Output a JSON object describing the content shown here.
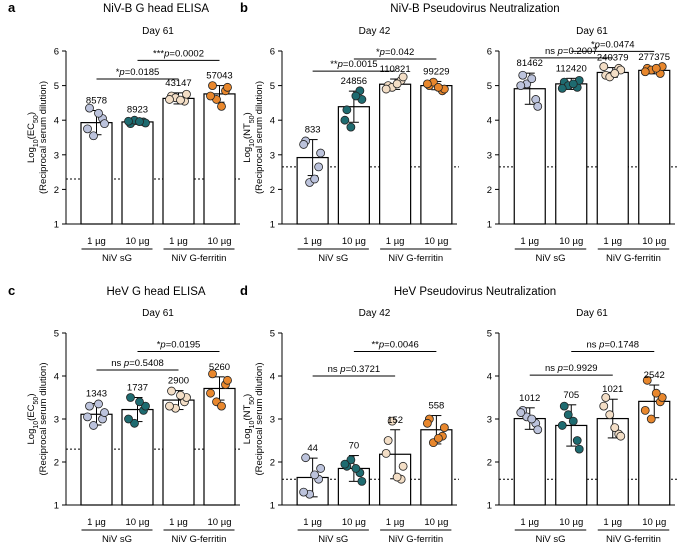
{
  "colors": {
    "dot_1ug_sG": "#bcc3dc",
    "dot_10ug_sG": "#1e6b70",
    "dot_1ug_ferritin": "#f3dec6",
    "dot_10ug_ferritin": "#e8872d",
    "axis": "#000000",
    "bar_fill": "#ffffff"
  },
  "common": {
    "categories": [
      "1 µg",
      "10 µg",
      "1 µg",
      "10 µg"
    ],
    "group_labels": [
      "NiV sG",
      "NiV G-ferritin"
    ]
  },
  "chart_data": [
    {
      "id": "a-day61",
      "type": "bar",
      "panel_letter": "a",
      "panel_title": "NiV-B G head ELISA",
      "subtitle": "Day 61",
      "ylabel_line1": "Log10(EC50)",
      "ylabel_line2": "(Reciprocal serum dilution)",
      "ylim": [
        1,
        6
      ],
      "yticks": [
        1,
        2,
        3,
        4,
        5,
        6
      ],
      "threshold": 2.3,
      "categories": [
        "1 µg",
        "10 µg",
        "1 µg",
        "10 µg"
      ],
      "values": [
        3.93,
        3.95,
        4.63,
        4.76
      ],
      "errors": [
        0.35,
        0.07,
        0.16,
        0.24
      ],
      "value_labels": [
        "8578",
        "8923",
        "43147",
        "57043"
      ],
      "points": [
        [
          4.35,
          4.05,
          3.55,
          3.9,
          3.75,
          4.2
        ],
        [
          3.9,
          3.95,
          4.0,
          3.92,
          3.97,
          3.96
        ],
        [
          4.7,
          4.55,
          4.65,
          4.75,
          4.6,
          4.58
        ],
        [
          5.0,
          4.85,
          4.6,
          4.95,
          4.7,
          4.4
        ]
      ],
      "significance": [
        {
          "text": "*p=0.0185",
          "from": 0,
          "to": 2,
          "y": 5.19
        },
        {
          "text": "***p=0.0002",
          "from": 1,
          "to": 3,
          "y": 5.73
        }
      ]
    },
    {
      "id": "b-day42",
      "type": "bar",
      "panel_letter": "b",
      "panel_title": "NiV-B Pseudovirus Neutralization",
      "subtitle": "Day 42",
      "ylabel_line1": "Log10(NT50)",
      "ylabel_line2": "(Reciprocal serum dilution)",
      "ylim": [
        1,
        6
      ],
      "yticks": [
        1,
        2,
        3,
        4,
        5,
        6
      ],
      "threshold": 2.65,
      "categories": [
        "1 µg",
        "10 µg",
        "1 µg",
        "10 µg"
      ],
      "values": [
        2.92,
        4.39,
        5.04,
        5.0
      ],
      "errors": [
        0.52,
        0.45,
        0.15,
        0.12
      ],
      "value_labels": [
        "833",
        "24856",
        "110821",
        "99229"
      ],
      "points": [
        [
          3.4,
          2.65,
          2.2,
          3.05,
          3.3,
          2.3
        ],
        [
          4.3,
          4.85,
          3.8,
          4.6,
          4.0,
          4.7
        ],
        [
          5.0,
          5.15,
          4.95,
          5.25,
          4.9,
          5.05
        ],
        [
          5.0,
          4.85,
          5.1,
          4.9,
          5.05,
          4.95
        ]
      ],
      "significance": [
        {
          "text": "**p=0.0015",
          "from": 0,
          "to": 2,
          "y": 5.42
        },
        {
          "text": "*p=0.042",
          "from": 1,
          "to": 3,
          "y": 5.77
        }
      ]
    },
    {
      "id": "b-day61",
      "type": "bar",
      "panel_letter": "",
      "panel_title": "",
      "subtitle": "Day 61",
      "ylabel_line1": "",
      "ylabel_line2": "",
      "ylim": [
        1,
        6
      ],
      "yticks": [
        1,
        2,
        3,
        4,
        5,
        6
      ],
      "threshold": 2.65,
      "categories": [
        "1 µg",
        "10 µg",
        "1 µg",
        "10 µg"
      ],
      "values": [
        4.91,
        5.05,
        5.38,
        5.44
      ],
      "errors": [
        0.45,
        0.16,
        0.14,
        0.1
      ],
      "value_labels": [
        "81462",
        "112420",
        "240379",
        "277375"
      ],
      "points": [
        [
          5.3,
          4.6,
          5.05,
          4.4,
          5.0,
          5.2
        ],
        [
          5.1,
          4.95,
          5.0,
          5.15,
          4.92,
          5.05
        ],
        [
          5.3,
          5.5,
          5.25,
          5.45,
          5.55,
          5.35
        ],
        [
          5.5,
          5.35,
          5.45,
          5.55,
          5.4,
          5.5
        ]
      ],
      "significance": [
        {
          "text": "ns p=0.2007",
          "from": 0,
          "to": 2,
          "y": 5.8
        },
        {
          "text": "*p=0.0474",
          "from": 1,
          "to": 3,
          "y": 5.99
        }
      ]
    },
    {
      "id": "c-day61",
      "type": "bar",
      "panel_letter": "c",
      "panel_title": "HeV G head ELISA",
      "subtitle": "Day 61",
      "ylabel_line1": "Log10(EC50)",
      "ylabel_line2": "(Reciprocal serum dilution)",
      "ylim": [
        1,
        5
      ],
      "yticks": [
        1,
        2,
        3,
        4,
        5
      ],
      "threshold": 2.3,
      "categories": [
        "1 µg",
        "10 µg",
        "1 µg",
        "10 µg"
      ],
      "values": [
        3.11,
        3.22,
        3.44,
        3.71
      ],
      "errors": [
        0.25,
        0.28,
        0.22,
        0.27
      ],
      "value_labels": [
        "1343",
        "1737",
        "2900",
        "5260"
      ],
      "points": [
        [
          3.3,
          3.0,
          2.85,
          3.15,
          3.05,
          3.35
        ],
        [
          3.5,
          3.2,
          2.9,
          3.3,
          3.0,
          3.4
        ],
        [
          3.65,
          3.4,
          3.25,
          3.5,
          3.3,
          3.55
        ],
        [
          4.05,
          3.8,
          3.4,
          3.9,
          3.6,
          3.3
        ]
      ],
      "significance": [
        {
          "text": "ns p=0.5408",
          "from": 0,
          "to": 2,
          "y": 4.14
        },
        {
          "text": "*p=0.0195",
          "from": 1,
          "to": 3,
          "y": 4.57
        }
      ]
    },
    {
      "id": "d-day42",
      "type": "bar",
      "panel_letter": "d",
      "panel_title": "HeV Pseudovirus Neutralization",
      "subtitle": "Day 42",
      "ylabel_line1": "Log10(NT50)",
      "ylabel_line2": "(Reciprocal serum dilution)",
      "ylim": [
        1,
        5
      ],
      "yticks": [
        1,
        2,
        3,
        4,
        5
      ],
      "threshold": 1.6,
      "categories": [
        "1 µg",
        "10 µg",
        "1 µg",
        "10 µg"
      ],
      "values": [
        1.64,
        1.85,
        2.18,
        2.75
      ],
      "errors": [
        0.45,
        0.3,
        0.57,
        0.33
      ],
      "value_labels": [
        "44",
        "70",
        "152",
        "558"
      ],
      "points": [
        [
          2.1,
          1.6,
          1.25,
          1.85,
          1.3,
          1.7
        ],
        [
          1.9,
          1.75,
          2.05,
          1.55,
          1.95,
          1.85
        ],
        [
          2.5,
          1.6,
          2.95,
          1.9,
          2.2,
          1.65
        ],
        [
          3.0,
          2.6,
          2.45,
          2.8,
          2.9,
          2.55
        ]
      ],
      "significance": [
        {
          "text": "ns p=0.3721",
          "from": 0,
          "to": 2,
          "y": 4.0
        },
        {
          "text": "**p=0.0046",
          "from": 1,
          "to": 3,
          "y": 4.57
        }
      ]
    },
    {
      "id": "d-day61",
      "type": "bar",
      "panel_letter": "",
      "panel_title": "",
      "subtitle": "Day 61",
      "ylabel_line1": "",
      "ylabel_line2": "",
      "ylim": [
        1,
        5
      ],
      "yticks": [
        1,
        2,
        3,
        4,
        5
      ],
      "threshold": 1.6,
      "categories": [
        "1 µg",
        "10 µg",
        "1 µg",
        "10 µg"
      ],
      "values": [
        3.01,
        2.85,
        3.01,
        3.41
      ],
      "errors": [
        0.25,
        0.48,
        0.45,
        0.38
      ],
      "value_labels": [
        "1012",
        "705",
        "1021",
        "2542"
      ],
      "points": [
        [
          3.2,
          2.9,
          3.05,
          2.75,
          3.15,
          3.0
        ],
        [
          3.3,
          2.5,
          3.1,
          2.3,
          2.85,
          2.95
        ],
        [
          3.5,
          2.65,
          3.1,
          2.6,
          3.3,
          2.8
        ],
        [
          3.9,
          3.4,
          3.0,
          3.5,
          3.2,
          3.6
        ]
      ],
      "significance": [
        {
          "text": "ns p=0.9929",
          "from": 0,
          "to": 2,
          "y": 4.02
        },
        {
          "text": "ns p=0.1748",
          "from": 1,
          "to": 3,
          "y": 4.57
        }
      ]
    }
  ]
}
